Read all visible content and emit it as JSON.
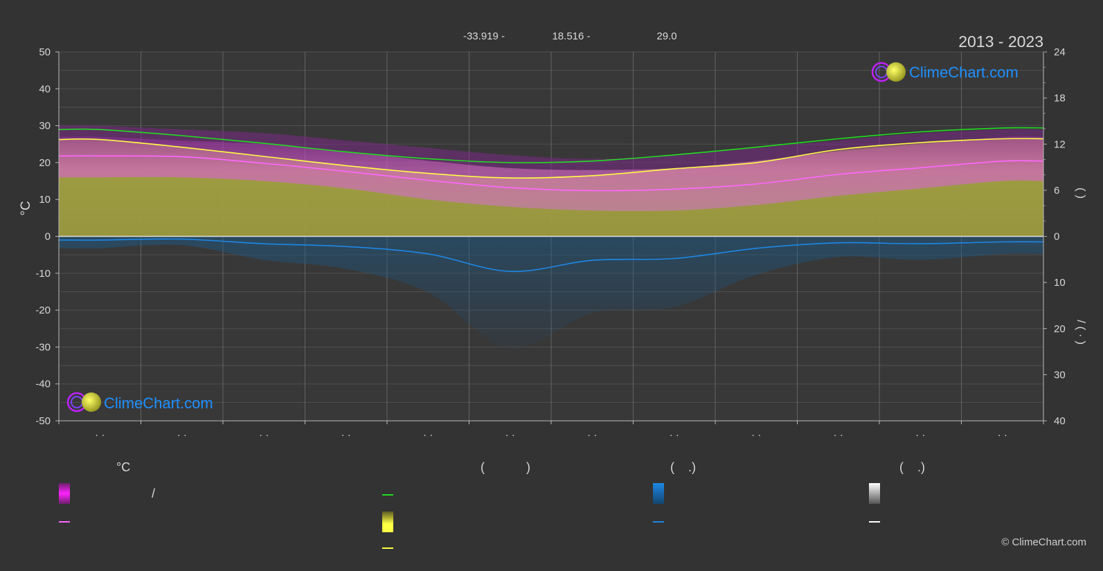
{
  "header": {
    "coord_lat": "-33.919 -",
    "coord_lon": "18.516 -",
    "elevation": "29.0",
    "year_range": "2013 - 2023"
  },
  "watermark": {
    "text": "ClimeChart.com"
  },
  "copyright": "© ClimeChart.com",
  "legend": {
    "col1_head": "°C",
    "col1_sep": "/",
    "col2_head": "(            )",
    "col3_head": "(    .)",
    "col4_head": "(    .)"
  },
  "colors": {
    "background": "#333333",
    "grid": "#5a5a5a",
    "daylight": "#22dd22",
    "sunshine": "#ffff44",
    "mean_temp": "#ff66ff",
    "precip": "#1e88e5",
    "snow": "#ffffff",
    "temp_band": "#ff00ff",
    "sunshine_band": "#b5b54a",
    "brand_blue": "#1e90ff"
  },
  "chart_data": {
    "type": "line",
    "left_axis": {
      "label": "°C",
      "ylim": [
        -50,
        50
      ],
      "ticks": [
        "50",
        "40",
        "30",
        "20",
        "10",
        "0",
        "-10",
        "-20",
        "-30",
        "-40",
        "-50"
      ]
    },
    "right_axis_top": {
      "label": "(   )",
      "range": [
        0,
        24
      ],
      "ticks": [
        "24",
        "18",
        "12",
        "6",
        "0"
      ]
    },
    "right_axis_bottom": {
      "label": "/      (  ·  )",
      "range": [
        0,
        40
      ],
      "ticks": [
        "10",
        "20",
        "30",
        "40"
      ]
    },
    "x_ticks": [
      "· ·",
      "· ·",
      "· ·",
      "· ·",
      "· ·",
      "· ·",
      "· ·",
      "· ·",
      "· ·",
      "· ·",
      "· ·",
      "· ·"
    ],
    "month_positions": [
      0.5,
      1.5,
      2.5,
      3.5,
      4.5,
      5.5,
      6.5,
      7.5,
      8.5,
      9.5,
      10.5,
      11.5
    ],
    "series": [
      {
        "key": "daylight",
        "axis": "hours",
        "values": [
          13.9,
          13.1,
          12.1,
          11.0,
          10.1,
          9.6,
          9.8,
          10.6,
          11.6,
          12.7,
          13.6,
          14.1
        ]
      },
      {
        "key": "sunshine",
        "axis": "hours",
        "values": [
          12.6,
          11.6,
          10.4,
          9.2,
          8.2,
          7.6,
          7.9,
          8.8,
          9.6,
          11.3,
          12.2,
          12.7
        ]
      },
      {
        "key": "mean_temp",
        "axis": "temp",
        "values": [
          21.8,
          21.6,
          19.8,
          17.6,
          15.2,
          13.2,
          12.4,
          12.8,
          14.2,
          16.8,
          18.6,
          20.4
        ]
      },
      {
        "key": "precip",
        "axis": "precip_mm",
        "values": [
          0.8,
          0.6,
          1.6,
          2.2,
          3.8,
          7.6,
          5.2,
          4.8,
          2.6,
          1.4,
          1.6,
          1.2
        ]
      }
    ],
    "bands": {
      "temp_max_upper": [
        30,
        29,
        28,
        26,
        24,
        22,
        21,
        22,
        24,
        26,
        28,
        29
      ],
      "temp_max": [
        27,
        26,
        25,
        23,
        20.5,
        18.5,
        18,
        18.5,
        20.5,
        23,
        25,
        27
      ],
      "temp_min": [
        16,
        16,
        15,
        13,
        10,
        8,
        7,
        7,
        8.5,
        11,
        13,
        15
      ]
    }
  }
}
